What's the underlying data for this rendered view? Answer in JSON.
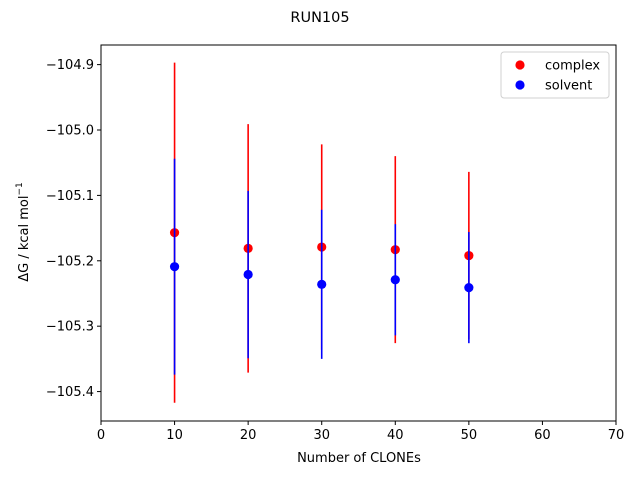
{
  "chart_data": {
    "type": "scatter",
    "title": "RUN105",
    "xlabel": "Number of CLONEs",
    "ylabel_main": "ΔG / kcal mol",
    "ylabel_sup": "−1",
    "xlim": [
      0,
      70
    ],
    "ylim": [
      -105.445,
      -104.87
    ],
    "x_ticks": [
      0,
      10,
      20,
      30,
      40,
      50,
      60,
      70
    ],
    "x_tick_labels": [
      "0",
      "10",
      "20",
      "30",
      "40",
      "50",
      "60",
      "70"
    ],
    "y_ticks": [
      -104.9,
      -105.0,
      -105.1,
      -105.2,
      -105.3,
      -105.4
    ],
    "y_tick_labels": [
      "−104.9",
      "−105.0",
      "−105.1",
      "−105.2",
      "−105.3",
      "−105.4"
    ],
    "grid": false,
    "legend_position": "top-right",
    "series": [
      {
        "name": "complex",
        "color": "#ff0000",
        "x": [
          10,
          20,
          30,
          40,
          50
        ],
        "y": [
          -105.157,
          -105.181,
          -105.179,
          -105.183,
          -105.192
        ],
        "err": [
          0.26,
          0.19,
          0.157,
          0.143,
          0.128
        ]
      },
      {
        "name": "solvent",
        "color": "#0000ff",
        "x": [
          10,
          20,
          30,
          40,
          50
        ],
        "y": [
          -105.209,
          -105.221,
          -105.236,
          -105.229,
          -105.241
        ],
        "err": [
          0.165,
          0.128,
          0.114,
          0.085,
          0.085
        ]
      }
    ]
  }
}
